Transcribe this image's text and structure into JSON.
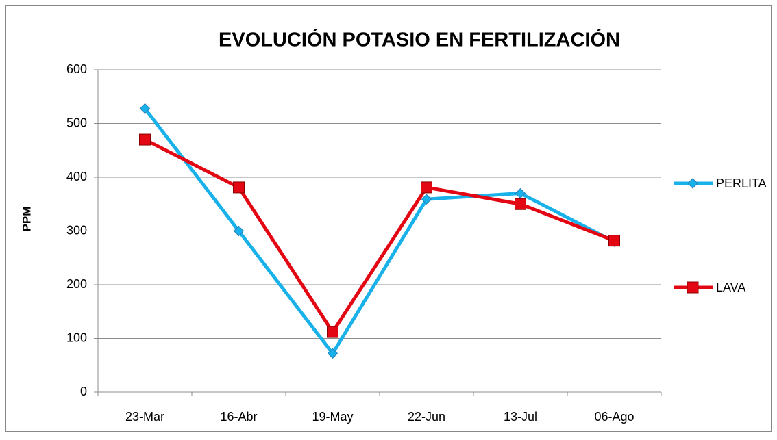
{
  "chart_data": {
    "type": "line",
    "title": "EVOLUCIÓN POTASIO EN FERTILIZACIÓN",
    "y_label": "PPM",
    "categories": [
      "23-Mar",
      "16-Abr",
      "19-May",
      "22-Jun",
      "13-Jul",
      "06-Ago"
    ],
    "series": [
      {
        "name": "PERLITA",
        "color": "#19b1ea",
        "marker": "diamond",
        "values": [
          528,
          300,
          72,
          359,
          370,
          280
        ]
      },
      {
        "name": "LAVA",
        "color": "#e30613",
        "marker": "square",
        "values": [
          470,
          381,
          112,
          381,
          350,
          282
        ]
      }
    ],
    "ylim": [
      0,
      600
    ],
    "yticks": [
      0,
      100,
      200,
      300,
      400,
      500,
      600
    ],
    "grid": true,
    "legend": "right"
  }
}
